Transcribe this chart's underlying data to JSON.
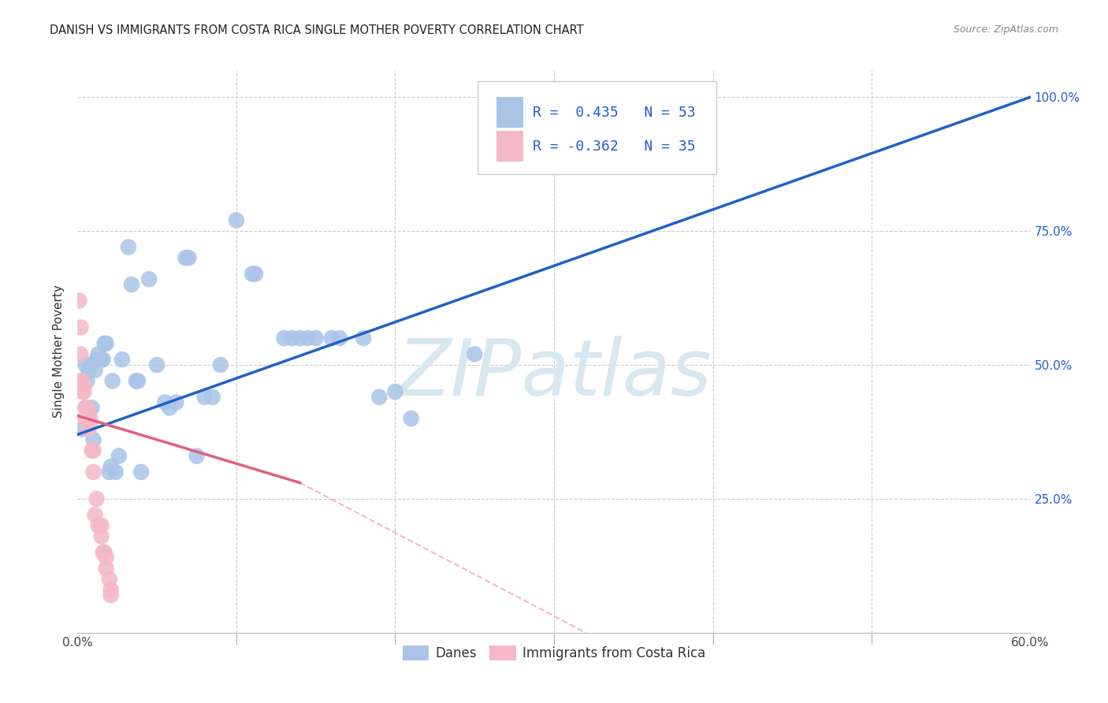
{
  "title": "DANISH VS IMMIGRANTS FROM COSTA RICA SINGLE MOTHER POVERTY CORRELATION CHART",
  "source": "Source: ZipAtlas.com",
  "ylabel": "Single Mother Poverty",
  "xlim": [
    0.0,
    0.6
  ],
  "ylim": [
    0.0,
    1.05
  ],
  "danes_R": 0.435,
  "danes_N": 53,
  "cr_R": -0.362,
  "cr_N": 35,
  "danes_color": "#aac4e8",
  "cr_color": "#f4b8c8",
  "danes_line_color": "#2060c8",
  "cr_line_color": "#e06080",
  "cr_dash_color": "#f0b8c8",
  "legend_box_color": "#eeeeee",
  "text_blue": "#2060c8",
  "watermark_color": "#d8e8f0",
  "background_color": "#ffffff",
  "grid_color": "#cccccc",
  "danes_scatter": [
    [
      0.003,
      0.38
    ],
    [
      0.005,
      0.5
    ],
    [
      0.006,
      0.47
    ],
    [
      0.007,
      0.49
    ],
    [
      0.008,
      0.5
    ],
    [
      0.009,
      0.42
    ],
    [
      0.01,
      0.36
    ],
    [
      0.011,
      0.49
    ],
    [
      0.012,
      0.51
    ],
    [
      0.013,
      0.52
    ],
    [
      0.014,
      0.51
    ],
    [
      0.015,
      0.51
    ],
    [
      0.016,
      0.51
    ],
    [
      0.017,
      0.54
    ],
    [
      0.018,
      0.54
    ],
    [
      0.02,
      0.3
    ],
    [
      0.021,
      0.31
    ],
    [
      0.022,
      0.47
    ],
    [
      0.024,
      0.3
    ],
    [
      0.026,
      0.33
    ],
    [
      0.028,
      0.51
    ],
    [
      0.032,
      0.72
    ],
    [
      0.034,
      0.65
    ],
    [
      0.037,
      0.47
    ],
    [
      0.038,
      0.47
    ],
    [
      0.04,
      0.3
    ],
    [
      0.045,
      0.66
    ],
    [
      0.05,
      0.5
    ],
    [
      0.055,
      0.43
    ],
    [
      0.058,
      0.42
    ],
    [
      0.062,
      0.43
    ],
    [
      0.068,
      0.7
    ],
    [
      0.07,
      0.7
    ],
    [
      0.075,
      0.33
    ],
    [
      0.08,
      0.44
    ],
    [
      0.085,
      0.44
    ],
    [
      0.09,
      0.5
    ],
    [
      0.1,
      0.77
    ],
    [
      0.11,
      0.67
    ],
    [
      0.112,
      0.67
    ],
    [
      0.13,
      0.55
    ],
    [
      0.135,
      0.55
    ],
    [
      0.14,
      0.55
    ],
    [
      0.145,
      0.55
    ],
    [
      0.15,
      0.55
    ],
    [
      0.16,
      0.55
    ],
    [
      0.165,
      0.55
    ],
    [
      0.18,
      0.55
    ],
    [
      0.19,
      0.44
    ],
    [
      0.2,
      0.45
    ],
    [
      0.21,
      0.4
    ],
    [
      0.25,
      0.52
    ],
    [
      0.27,
      1.0
    ]
  ],
  "cr_scatter": [
    [
      0.001,
      0.62
    ],
    [
      0.002,
      0.52
    ],
    [
      0.002,
      0.47
    ],
    [
      0.003,
      0.47
    ],
    [
      0.003,
      0.46
    ],
    [
      0.004,
      0.46
    ],
    [
      0.004,
      0.46
    ],
    [
      0.005,
      0.42
    ],
    [
      0.005,
      0.42
    ],
    [
      0.006,
      0.42
    ],
    [
      0.006,
      0.41
    ],
    [
      0.007,
      0.41
    ],
    [
      0.007,
      0.4
    ],
    [
      0.008,
      0.4
    ],
    [
      0.008,
      0.39
    ],
    [
      0.009,
      0.34
    ],
    [
      0.01,
      0.34
    ],
    [
      0.011,
      0.22
    ],
    [
      0.013,
      0.2
    ],
    [
      0.015,
      0.18
    ],
    [
      0.016,
      0.15
    ],
    [
      0.017,
      0.15
    ],
    [
      0.018,
      0.12
    ],
    [
      0.02,
      0.1
    ],
    [
      0.021,
      0.08
    ],
    [
      0.002,
      0.57
    ],
    [
      0.003,
      0.45
    ],
    [
      0.004,
      0.45
    ],
    [
      0.005,
      0.4
    ],
    [
      0.007,
      0.38
    ],
    [
      0.01,
      0.3
    ],
    [
      0.012,
      0.25
    ],
    [
      0.015,
      0.2
    ],
    [
      0.018,
      0.14
    ],
    [
      0.021,
      0.07
    ]
  ],
  "danes_line": [
    0.0,
    0.37,
    0.6,
    1.0
  ],
  "cr_line_solid": [
    0.0,
    0.405,
    0.14,
    0.28
  ],
  "cr_line_dash": [
    0.14,
    0.28,
    0.32,
    0.0
  ],
  "title_fontsize": 10.5,
  "axis_label_fontsize": 11,
  "tick_fontsize": 11,
  "legend_fontsize": 13
}
